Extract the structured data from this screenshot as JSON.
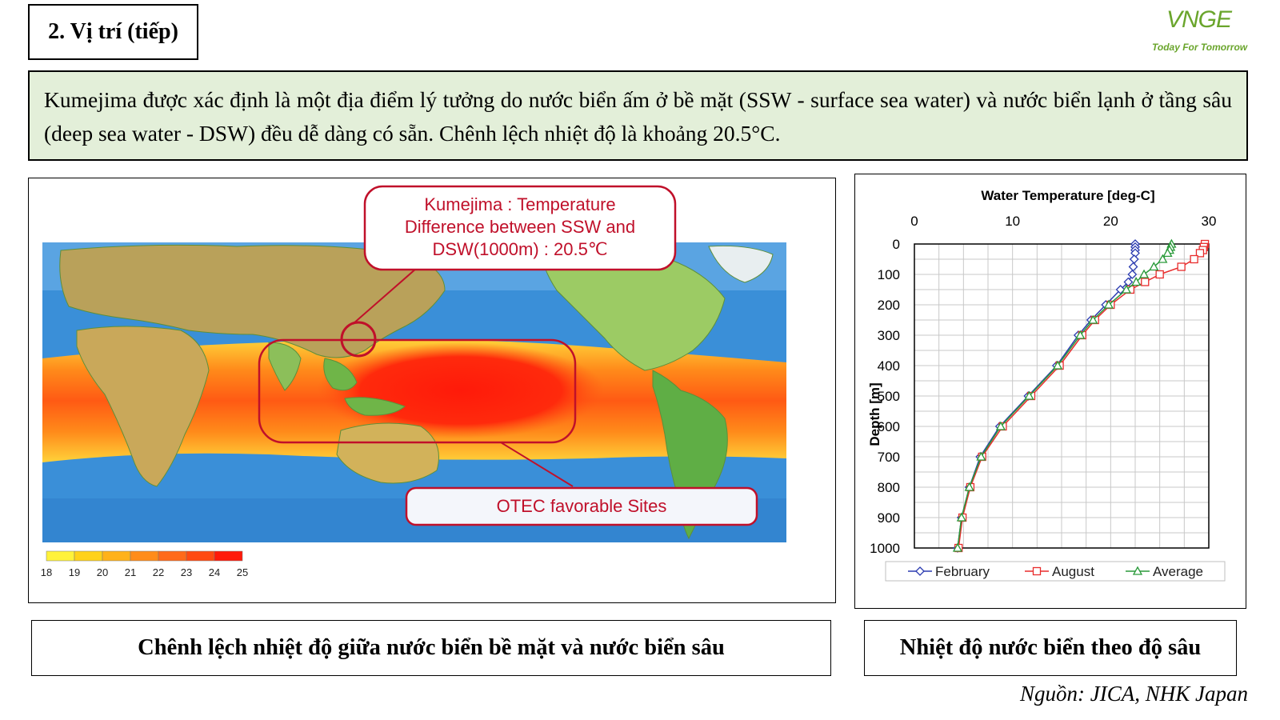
{
  "slide": {
    "title": "2. Vị trí (tiếp)",
    "logo_text": "VNGE",
    "logo_tagline": "Today For Tomorrow",
    "intro": "Kumejima được xác định là một địa điểm lý tưởng do nước biển ấm ở bề mặt (SSW - surface sea water) và nước biển lạnh ở tầng sâu (deep sea water - DSW) đều dễ dàng có sẵn. Chênh lệch nhiệt độ là khoảng 20.5°C.",
    "caption_left": "Chênh lệch nhiệt độ giữa nước biển bề mặt và nước biển sâu",
    "caption_right": "Nhiệt độ nước biển theo độ sâu",
    "source": "Nguồn: JICA, NHK Japan"
  },
  "map": {
    "callout_lines": [
      "Kumejima :  Temperature",
      "Difference between SSW and",
      "DSW(1000m) : 20.5℃"
    ],
    "otec_label": "OTEC favorable Sites",
    "colorbar": {
      "ticks": [
        "18",
        "19",
        "20",
        "21",
        "22",
        "23",
        "24",
        "25"
      ],
      "colors": [
        "#fff23a",
        "#ffd21a",
        "#ffb21a",
        "#ff8c1a",
        "#ff6a1a",
        "#ff4a12",
        "#ff1a0a"
      ]
    },
    "colors": {
      "callout": "#c0102a",
      "land": "#6cb04a",
      "ocean": "#3a8fd8"
    }
  },
  "chart_data": {
    "type": "line",
    "title": "Water Temperature [deg-C]",
    "xlabel": "Water Temperature [deg-C]",
    "ylabel": "Depth [m]",
    "xlim": [
      0,
      30
    ],
    "ylim": [
      0,
      1000
    ],
    "y_inverted": true,
    "x_axis_position": "top",
    "grid": true,
    "legend_position": "bottom",
    "x_ticks": [
      "0",
      "10",
      "20",
      "30"
    ],
    "y_ticks": [
      "0",
      "100",
      "200",
      "300",
      "400",
      "500",
      "600",
      "700",
      "800",
      "900",
      "1000"
    ],
    "series": [
      {
        "name": "February",
        "color": "#2b3bb0",
        "marker": "diamond",
        "points": [
          [
            22.5,
            0
          ],
          [
            22.5,
            10
          ],
          [
            22.5,
            20
          ],
          [
            22.5,
            30
          ],
          [
            22.4,
            50
          ],
          [
            22.3,
            75
          ],
          [
            22.2,
            100
          ],
          [
            21.8,
            125
          ],
          [
            21,
            150
          ],
          [
            19.5,
            200
          ],
          [
            18,
            250
          ],
          [
            16.7,
            300
          ],
          [
            14.5,
            400
          ],
          [
            11.6,
            500
          ],
          [
            8.7,
            600
          ],
          [
            6.7,
            700
          ],
          [
            5.6,
            800
          ],
          [
            4.8,
            900
          ],
          [
            4.4,
            1000
          ]
        ]
      },
      {
        "name": "August",
        "color": "#e82c2c",
        "marker": "square",
        "points": [
          [
            29.6,
            0
          ],
          [
            29.5,
            10
          ],
          [
            29.4,
            20
          ],
          [
            29.1,
            30
          ],
          [
            28.5,
            50
          ],
          [
            27.2,
            75
          ],
          [
            25,
            100
          ],
          [
            23.5,
            125
          ],
          [
            22,
            150
          ],
          [
            20,
            200
          ],
          [
            18.4,
            250
          ],
          [
            17.1,
            300
          ],
          [
            14.8,
            400
          ],
          [
            11.9,
            500
          ],
          [
            9,
            600
          ],
          [
            6.9,
            700
          ],
          [
            5.7,
            800
          ],
          [
            4.9,
            900
          ],
          [
            4.5,
            1000
          ]
        ]
      },
      {
        "name": "Average",
        "color": "#2a9a3a",
        "marker": "triangle",
        "points": [
          [
            26.2,
            0
          ],
          [
            26.1,
            10
          ],
          [
            26,
            20
          ],
          [
            25.8,
            30
          ],
          [
            25.3,
            50
          ],
          [
            24.4,
            75
          ],
          [
            23.4,
            100
          ],
          [
            22.6,
            125
          ],
          [
            21.6,
            150
          ],
          [
            19.8,
            200
          ],
          [
            18.2,
            250
          ],
          [
            16.9,
            300
          ],
          [
            14.6,
            400
          ],
          [
            11.7,
            500
          ],
          [
            8.8,
            600
          ],
          [
            6.8,
            700
          ],
          [
            5.6,
            800
          ],
          [
            4.8,
            900
          ],
          [
            4.4,
            1000
          ]
        ]
      }
    ]
  }
}
